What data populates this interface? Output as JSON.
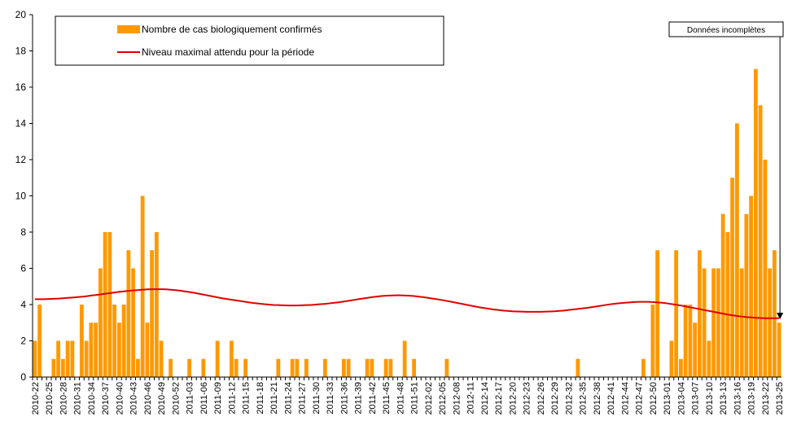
{
  "chart_data": {
    "type": "bar-line",
    "annotation": "Données incomplètes",
    "legend": "top-left",
    "categories": [
      "2010-22",
      null,
      null,
      "2010-25",
      null,
      null,
      "2010-28",
      null,
      null,
      "2010-31",
      null,
      null,
      "2010-34",
      null,
      null,
      "2010-37",
      null,
      null,
      "2010-40",
      null,
      null,
      "2010-43",
      null,
      null,
      "2010-46",
      null,
      null,
      "2010-49",
      null,
      null,
      "2010-52",
      null,
      null,
      "2011-03",
      null,
      null,
      "2011-06",
      null,
      null,
      "2011-09",
      null,
      null,
      "2011-12",
      null,
      null,
      "2011-15",
      null,
      null,
      "2011-18",
      null,
      null,
      "2011-21",
      null,
      null,
      "2011-24",
      null,
      null,
      "2011-27",
      null,
      null,
      "2011-30",
      null,
      null,
      "2011-33",
      null,
      null,
      "2011-36",
      null,
      null,
      "2011-39",
      null,
      null,
      "2011-42",
      null,
      null,
      "2011-45",
      null,
      null,
      "2011-48",
      null,
      null,
      "2011-51",
      null,
      null,
      "2012-02",
      null,
      null,
      "2012-05",
      null,
      null,
      "2012-08",
      null,
      null,
      "2012-11",
      null,
      null,
      "2012-14",
      null,
      null,
      "2012-17",
      null,
      null,
      "2012-20",
      null,
      null,
      "2012-23",
      null,
      null,
      "2012-26",
      null,
      null,
      "2012-29",
      null,
      null,
      "2012-32",
      null,
      null,
      "2012-35",
      null,
      null,
      "2012-38",
      null,
      null,
      "2012-41",
      null,
      null,
      "2012-44",
      null,
      null,
      "2012-47",
      null,
      null,
      "2012-50",
      null,
      null,
      "2013-01",
      null,
      null,
      "2013-04",
      null,
      null,
      "2013-07",
      null,
      null,
      "2013-10",
      null,
      null,
      "2013-13",
      null,
      null,
      "2013-16",
      null,
      null,
      "2013-19",
      null,
      null,
      "2013-22",
      null,
      null,
      "2013-25"
    ],
    "series": [
      {
        "name": "Nombre de cas biologiquement confirmés",
        "color": "#ff9900",
        "type": "bar",
        "values": [
          2,
          4,
          0,
          0,
          1,
          2,
          1,
          2,
          2,
          0,
          4,
          2,
          3,
          3,
          6,
          8,
          8,
          4,
          3,
          4,
          7,
          6,
          1,
          10,
          3,
          7,
          8,
          2,
          0,
          1,
          0,
          0,
          0,
          1,
          0,
          0,
          1,
          0,
          0,
          2,
          0,
          0,
          2,
          1,
          0,
          1,
          0,
          0,
          0,
          0,
          0,
          0,
          1,
          0,
          0,
          1,
          1,
          0,
          1,
          0,
          0,
          0,
          1,
          0,
          0,
          0,
          1,
          1,
          0,
          0,
          0,
          1,
          1,
          0,
          0,
          1,
          1,
          0,
          0,
          2,
          0,
          1,
          0,
          0,
          0,
          0,
          0,
          0,
          1,
          0,
          0,
          0,
          0,
          0,
          0,
          0,
          0,
          0,
          0,
          0,
          0,
          0,
          0,
          0,
          0,
          0,
          0,
          0,
          0,
          0,
          0,
          0,
          0,
          0,
          0,
          0,
          1,
          0,
          0,
          0,
          0,
          0,
          0,
          0,
          0,
          0,
          0,
          0,
          0,
          0,
          1,
          0,
          4,
          7,
          0,
          0,
          2,
          7,
          1,
          4,
          4,
          3,
          7,
          6,
          2,
          6,
          6,
          9,
          8,
          11,
          14,
          6,
          9,
          10,
          17,
          15,
          12,
          6,
          7,
          3
        ]
      },
      {
        "name": "Niveau maximal attendu pour la période",
        "color": "#e00000",
        "type": "line",
        "values": [
          4.3,
          4.3,
          4.3,
          4.31,
          4.32,
          4.33,
          4.35,
          4.37,
          4.39,
          4.41,
          4.43,
          4.46,
          4.5,
          4.53,
          4.56,
          4.6,
          4.63,
          4.67,
          4.7,
          4.73,
          4.76,
          4.78,
          4.8,
          4.82,
          4.84,
          4.85,
          4.85,
          4.85,
          4.84,
          4.82,
          4.8,
          4.77,
          4.73,
          4.69,
          4.65,
          4.6,
          4.55,
          4.5,
          4.45,
          4.4,
          4.35,
          4.31,
          4.27,
          4.23,
          4.19,
          4.15,
          4.11,
          4.08,
          4.05,
          4.02,
          4.0,
          3.98,
          3.97,
          3.96,
          3.95,
          3.95,
          3.95,
          3.96,
          3.97,
          3.98,
          4.0,
          4.02,
          4.04,
          4.07,
          4.1,
          4.13,
          4.17,
          4.21,
          4.25,
          4.29,
          4.33,
          4.37,
          4.41,
          4.44,
          4.47,
          4.49,
          4.5,
          4.51,
          4.51,
          4.5,
          4.49,
          4.47,
          4.44,
          4.41,
          4.37,
          4.33,
          4.29,
          4.25,
          4.2,
          4.15,
          4.1,
          4.05,
          4.0,
          3.95,
          3.9,
          3.85,
          3.81,
          3.77,
          3.73,
          3.7,
          3.67,
          3.65,
          3.63,
          3.62,
          3.61,
          3.6,
          3.6,
          3.6,
          3.6,
          3.61,
          3.62,
          3.63,
          3.65,
          3.67,
          3.7,
          3.73,
          3.76,
          3.79,
          3.82,
          3.86,
          3.9,
          3.94,
          3.98,
          4.02,
          4.05,
          4.08,
          4.1,
          4.12,
          4.14,
          4.15,
          4.15,
          4.15,
          4.14,
          4.12,
          4.1,
          4.07,
          4.03,
          3.99,
          3.95,
          3.9,
          3.85,
          3.8,
          3.75,
          3.7,
          3.65,
          3.6,
          3.55,
          3.5,
          3.45,
          3.41,
          3.37,
          3.34,
          3.31,
          3.29,
          3.27,
          3.26,
          3.25,
          3.25,
          3.25,
          3.25
        ]
      }
    ],
    "ylim": [
      0,
      20
    ],
    "yticks": [
      0,
      2,
      4,
      6,
      8,
      10,
      12,
      14,
      16,
      18,
      20
    ],
    "grid": false
  }
}
